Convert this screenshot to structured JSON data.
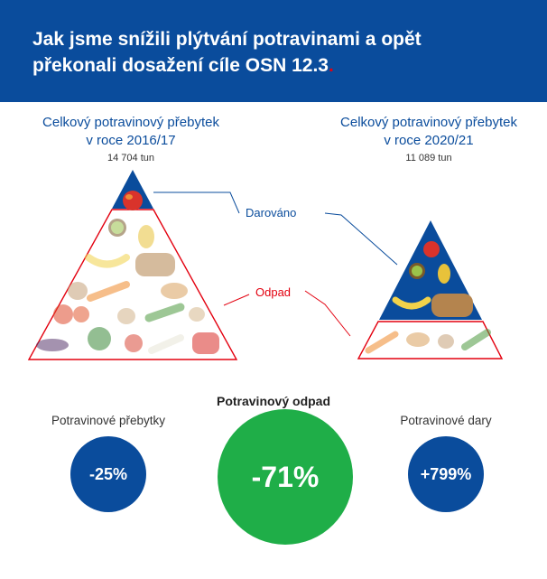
{
  "header": {
    "title_line1": "Jak jsme snížili plýtvání potravinami a opět",
    "title_line2": "překonali dosažení cíle OSN 12.3",
    "title_dot": "."
  },
  "left": {
    "title_line1": "Celkový potravinový přebytek",
    "title_line2": "v roce 2016/17",
    "amount": "14 704 tun"
  },
  "right": {
    "title_line1": "Celkový potravinový přebytek",
    "title_line2": "v roce 2020/21",
    "amount": "11 089 tun"
  },
  "labels": {
    "donated": "Darováno",
    "waste": "Odpad"
  },
  "stats": {
    "surplus": {
      "label": "Potravinové přebytky",
      "value": "-25%"
    },
    "waste": {
      "label": "Potravinový odpad",
      "value": "-71%"
    },
    "donations": {
      "label": "Potravinové dary",
      "value": "+799%"
    }
  },
  "colors": {
    "header_bg": "#0a4c9c",
    "donated_blue": "#0a4c9c",
    "waste_red": "#e3000f",
    "waste_circle_green": "#1fae48"
  },
  "icons": [
    "apple-icon",
    "kiwi-icon",
    "pear-icon",
    "banana-icon",
    "bread-icon",
    "carrot-icon",
    "croissant-icon",
    "tomato-icon",
    "cucumber-icon",
    "potato-icon",
    "broccoli-icon",
    "pepper-icon",
    "eggplant-icon"
  ]
}
